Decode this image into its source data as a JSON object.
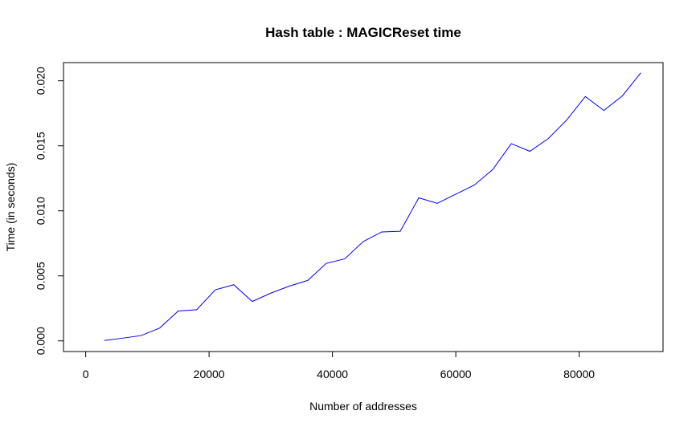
{
  "chart_data": {
    "type": "line",
    "title": "Hash table : MAGICReset time",
    "xlabel": "Number of addresses",
    "ylabel": "Time (in seconds)",
    "xlim": [
      -3600,
      93600
    ],
    "ylim": [
      -0.00082,
      0.0214
    ],
    "x_ticks": [
      0,
      20000,
      40000,
      60000,
      80000
    ],
    "x_tick_labels": [
      "0",
      "20000",
      "40000",
      "60000",
      "80000"
    ],
    "y_ticks": [
      0.0,
      0.005,
      0.01,
      0.015,
      0.02
    ],
    "y_tick_labels": [
      "0.000",
      "0.005",
      "0.010",
      "0.015",
      "0.020"
    ],
    "grid": false,
    "legend": "none",
    "series": [
      {
        "color": "#0000ff",
        "x": [
          3000,
          6000,
          9000,
          12000,
          15000,
          18000,
          21000,
          24000,
          27000,
          30000,
          33000,
          36000,
          39000,
          42000,
          45000,
          48000,
          51000,
          54000,
          57000,
          60000,
          63000,
          66000,
          69000,
          72000,
          75000,
          78000,
          81000,
          84000,
          87000,
          90000
        ],
        "y": [
          3e-05,
          0.00021,
          0.00041,
          0.00099,
          0.0023,
          0.0024,
          0.00392,
          0.00432,
          0.00303,
          0.00367,
          0.00421,
          0.00465,
          0.00596,
          0.00631,
          0.00764,
          0.00838,
          0.00843,
          0.011,
          0.01058,
          0.01128,
          0.01198,
          0.01318,
          0.01517,
          0.01458,
          0.01556,
          0.017,
          0.01879,
          0.01772,
          0.01884,
          0.02062
        ]
      }
    ]
  }
}
